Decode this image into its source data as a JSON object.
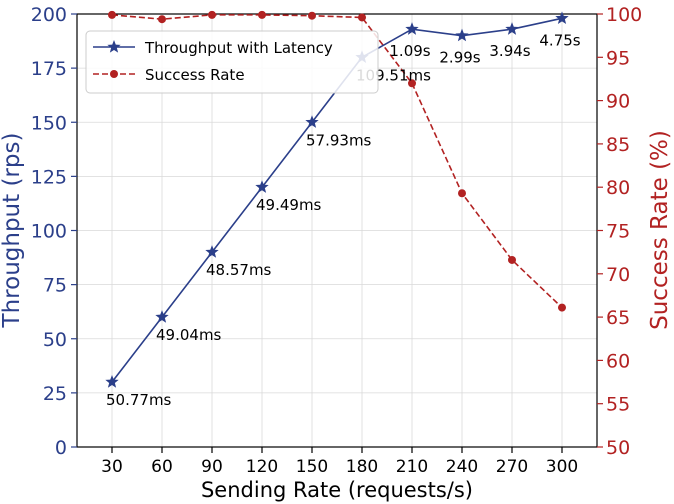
{
  "chart_data": {
    "type": "line",
    "xlabel": "Sending Rate (requests/s)",
    "ylabel_left": "Throughput (rps)",
    "ylabel_right": "Success Rate (%)",
    "x": [
      30,
      60,
      90,
      120,
      150,
      180,
      210,
      240,
      270,
      300
    ],
    "x_ticks": [
      "30",
      "60",
      "90",
      "120",
      "150",
      "180",
      "210",
      "240",
      "270",
      "300"
    ],
    "ylim_left": [
      0,
      200
    ],
    "yticks_left": [
      0,
      25,
      50,
      75,
      100,
      125,
      150,
      175,
      200
    ],
    "ylim_right": [
      50,
      100
    ],
    "yticks_right": [
      50,
      55,
      60,
      65,
      70,
      75,
      80,
      85,
      90,
      95,
      100
    ],
    "grid": true,
    "legend_position": "top-left",
    "series": [
      {
        "name": "Throughput with Latency",
        "axis": "left",
        "color": "#2b3f8a",
        "marker": "star",
        "line_style": "solid",
        "values": [
          30,
          60,
          90,
          120,
          150,
          180,
          193,
          190,
          193,
          198
        ],
        "labels": [
          "50.77ms",
          "49.04ms",
          "48.57ms",
          "49.49ms",
          "57.93ms",
          "109.51ms",
          "1.09s",
          "2.99s",
          "3.94s",
          "4.75s"
        ]
      },
      {
        "name": "Success Rate",
        "axis": "right",
        "color": "#b22222",
        "marker": "circle",
        "line_style": "dashed",
        "values": [
          99.9,
          99.4,
          99.9,
          99.9,
          99.8,
          99.6,
          92.0,
          79.3,
          71.6,
          66.1
        ]
      }
    ]
  }
}
